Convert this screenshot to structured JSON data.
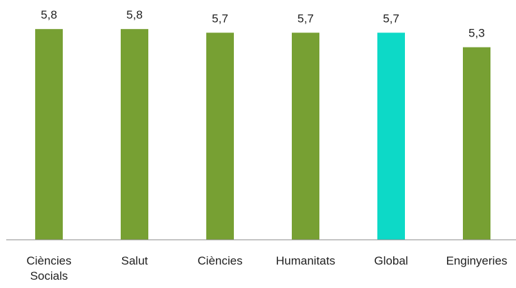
{
  "chart_data": {
    "type": "bar",
    "categories": [
      "Ciències Socials",
      "Salut",
      "Ciències",
      "Humanitats",
      "Global",
      "Enginyeries"
    ],
    "values": [
      5.8,
      5.8,
      5.7,
      5.7,
      5.7,
      5.3
    ],
    "value_labels": [
      "5,8",
      "5,8",
      "5,7",
      "5,7",
      "5,7",
      "5,3"
    ],
    "colors": [
      "#77a033",
      "#77a033",
      "#77a033",
      "#77a033",
      "#0dd9c7",
      "#77a033"
    ],
    "ylim": [
      0,
      6.6
    ],
    "grid": false
  }
}
